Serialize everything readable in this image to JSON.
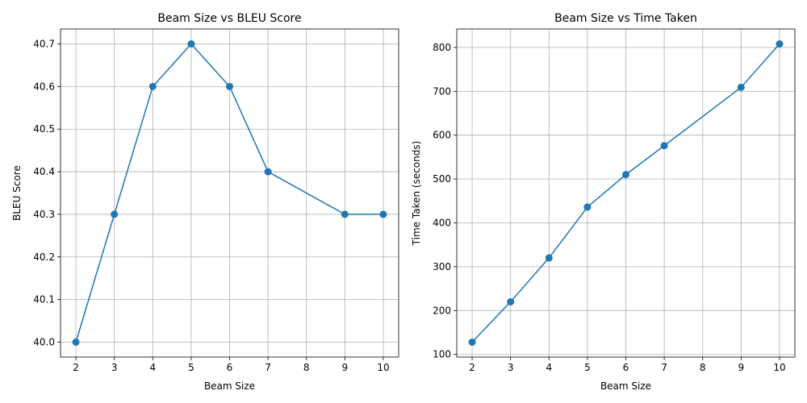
{
  "chart_data": [
    {
      "type": "line",
      "title": "Beam Size vs BLEU Score",
      "xlabel": "Beam Size",
      "ylabel": "BLEU Score",
      "x": [
        2,
        3,
        4,
        5,
        6,
        7,
        9,
        10
      ],
      "y": [
        40.0,
        40.3,
        40.6,
        40.7,
        40.6,
        40.4,
        40.3,
        40.3
      ],
      "xlim": [
        1.6,
        10.4
      ],
      "ylim": [
        39.965,
        40.735
      ],
      "xticks": [
        2,
        3,
        4,
        5,
        6,
        7,
        8,
        9,
        10
      ],
      "yticks": [
        40.0,
        40.1,
        40.2,
        40.3,
        40.4,
        40.5,
        40.6,
        40.7
      ],
      "ytick_labels": [
        "40.0",
        "40.1",
        "40.2",
        "40.3",
        "40.4",
        "40.5",
        "40.6",
        "40.7"
      ],
      "grid": true,
      "marker": "circle",
      "color": "#1f77b4"
    },
    {
      "type": "line",
      "title": "Beam Size vs Time Taken",
      "xlabel": "Beam Size",
      "ylabel": "Time Taken (seconds)",
      "x": [
        2,
        3,
        4,
        5,
        6,
        7,
        9,
        10
      ],
      "y": [
        128,
        220,
        320,
        436,
        510,
        576,
        709,
        808
      ],
      "xlim": [
        1.6,
        10.4
      ],
      "ylim": [
        94,
        842
      ],
      "xticks": [
        2,
        3,
        4,
        5,
        6,
        7,
        8,
        9,
        10
      ],
      "yticks": [
        100,
        200,
        300,
        400,
        500,
        600,
        700,
        800
      ],
      "ytick_labels": [
        "100",
        "200",
        "300",
        "400",
        "500",
        "600",
        "700",
        "800"
      ],
      "grid": true,
      "marker": "circle",
      "color": "#1f77b4"
    }
  ]
}
